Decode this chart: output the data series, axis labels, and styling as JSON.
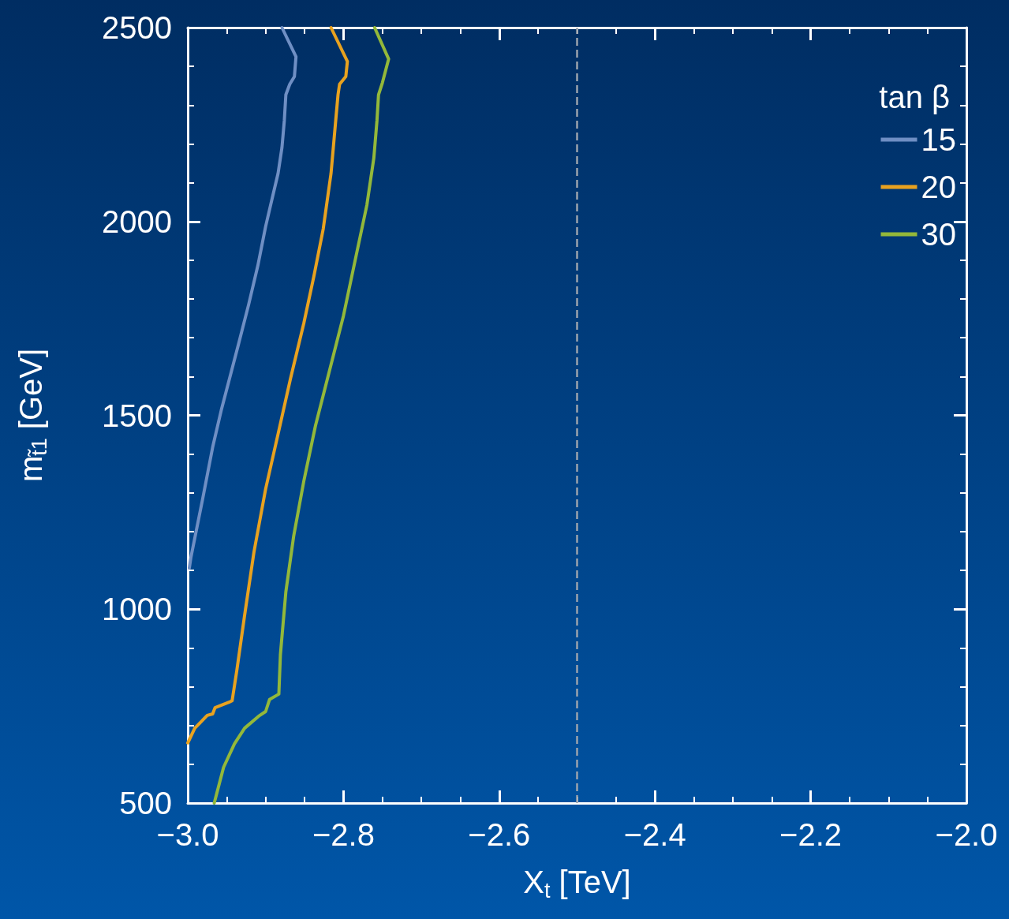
{
  "chart_data": {
    "type": "line",
    "xlabel": "X$_{t}$ [TeV]",
    "ylabel": "m$_{t̃1}$ [GeV]",
    "legend_title": "tan β",
    "legend": "top right",
    "grid": false,
    "marker": "none",
    "line_style": "solid",
    "xlim": [
      -3.0,
      -2.0
    ],
    "ylim": [
      500,
      2500
    ],
    "xticks": [
      {
        "value": -3.0,
        "label": "−3.0"
      },
      {
        "value": -2.8,
        "label": "−2.8"
      },
      {
        "value": -2.6,
        "label": "−2.6"
      },
      {
        "value": -2.4,
        "label": "−2.4"
      },
      {
        "value": -2.2,
        "label": "−2.2"
      },
      {
        "value": -2.0,
        "label": "−2.0"
      }
    ],
    "yticks": [
      500,
      1000,
      1500,
      2000,
      2500
    ],
    "ref_lines": [
      {
        "axis": "x",
        "value": -2.5,
        "color": "#9aa3ad",
        "line_style": "dashed"
      }
    ],
    "series": [
      {
        "name": "15",
        "color": "#6f8fc4",
        "x": [
          -2.879,
          -2.861,
          -2.863,
          -2.869,
          -2.874,
          -2.876,
          -2.879,
          -2.884,
          -2.892,
          -2.9,
          -2.91,
          -2.922,
          -2.935,
          -2.957,
          -2.968,
          -2.981,
          -2.996,
          -2.998
        ],
        "values": [
          2500,
          2425,
          2374,
          2354,
          2327,
          2260,
          2191,
          2124,
          2056,
          1987,
          1886,
          1784,
          1682,
          1513,
          1418,
          1283,
          1133,
          1106
        ]
      },
      {
        "name": "20",
        "color": "#e8a21f",
        "x": [
          -2.816,
          -2.795,
          -2.797,
          -2.805,
          -2.807,
          -2.81,
          -2.816,
          -2.826,
          -2.838,
          -2.851,
          -2.868,
          -2.884,
          -2.9,
          -2.915,
          -2.927,
          -2.937,
          -2.943,
          -2.947,
          -2.965,
          -2.968,
          -2.975,
          -2.991,
          -3.0
        ],
        "values": [
          2500,
          2413,
          2374,
          2354,
          2327,
          2260,
          2124,
          1981,
          1859,
          1737,
          1595,
          1452,
          1310,
          1147,
          984,
          842,
          764,
          760,
          746,
          730,
          726,
          693,
          655
        ]
      },
      {
        "name": "30",
        "color": "#93b83a",
        "x": [
          -2.76,
          -2.742,
          -2.75,
          -2.755,
          -2.757,
          -2.761,
          -2.77,
          -2.785,
          -2.8,
          -2.818,
          -2.836,
          -2.851,
          -2.864,
          -2.874,
          -2.881,
          -2.883,
          -2.895,
          -2.9,
          -2.909,
          -2.927,
          -2.94,
          -2.954,
          -2.966
        ],
        "values": [
          2500,
          2419,
          2358,
          2327,
          2260,
          2164,
          2042,
          1900,
          1757,
          1615,
          1473,
          1330,
          1188,
          1045,
          883,
          781,
          767,
          736,
          724,
          693,
          653,
          592,
          500
        ]
      }
    ]
  }
}
